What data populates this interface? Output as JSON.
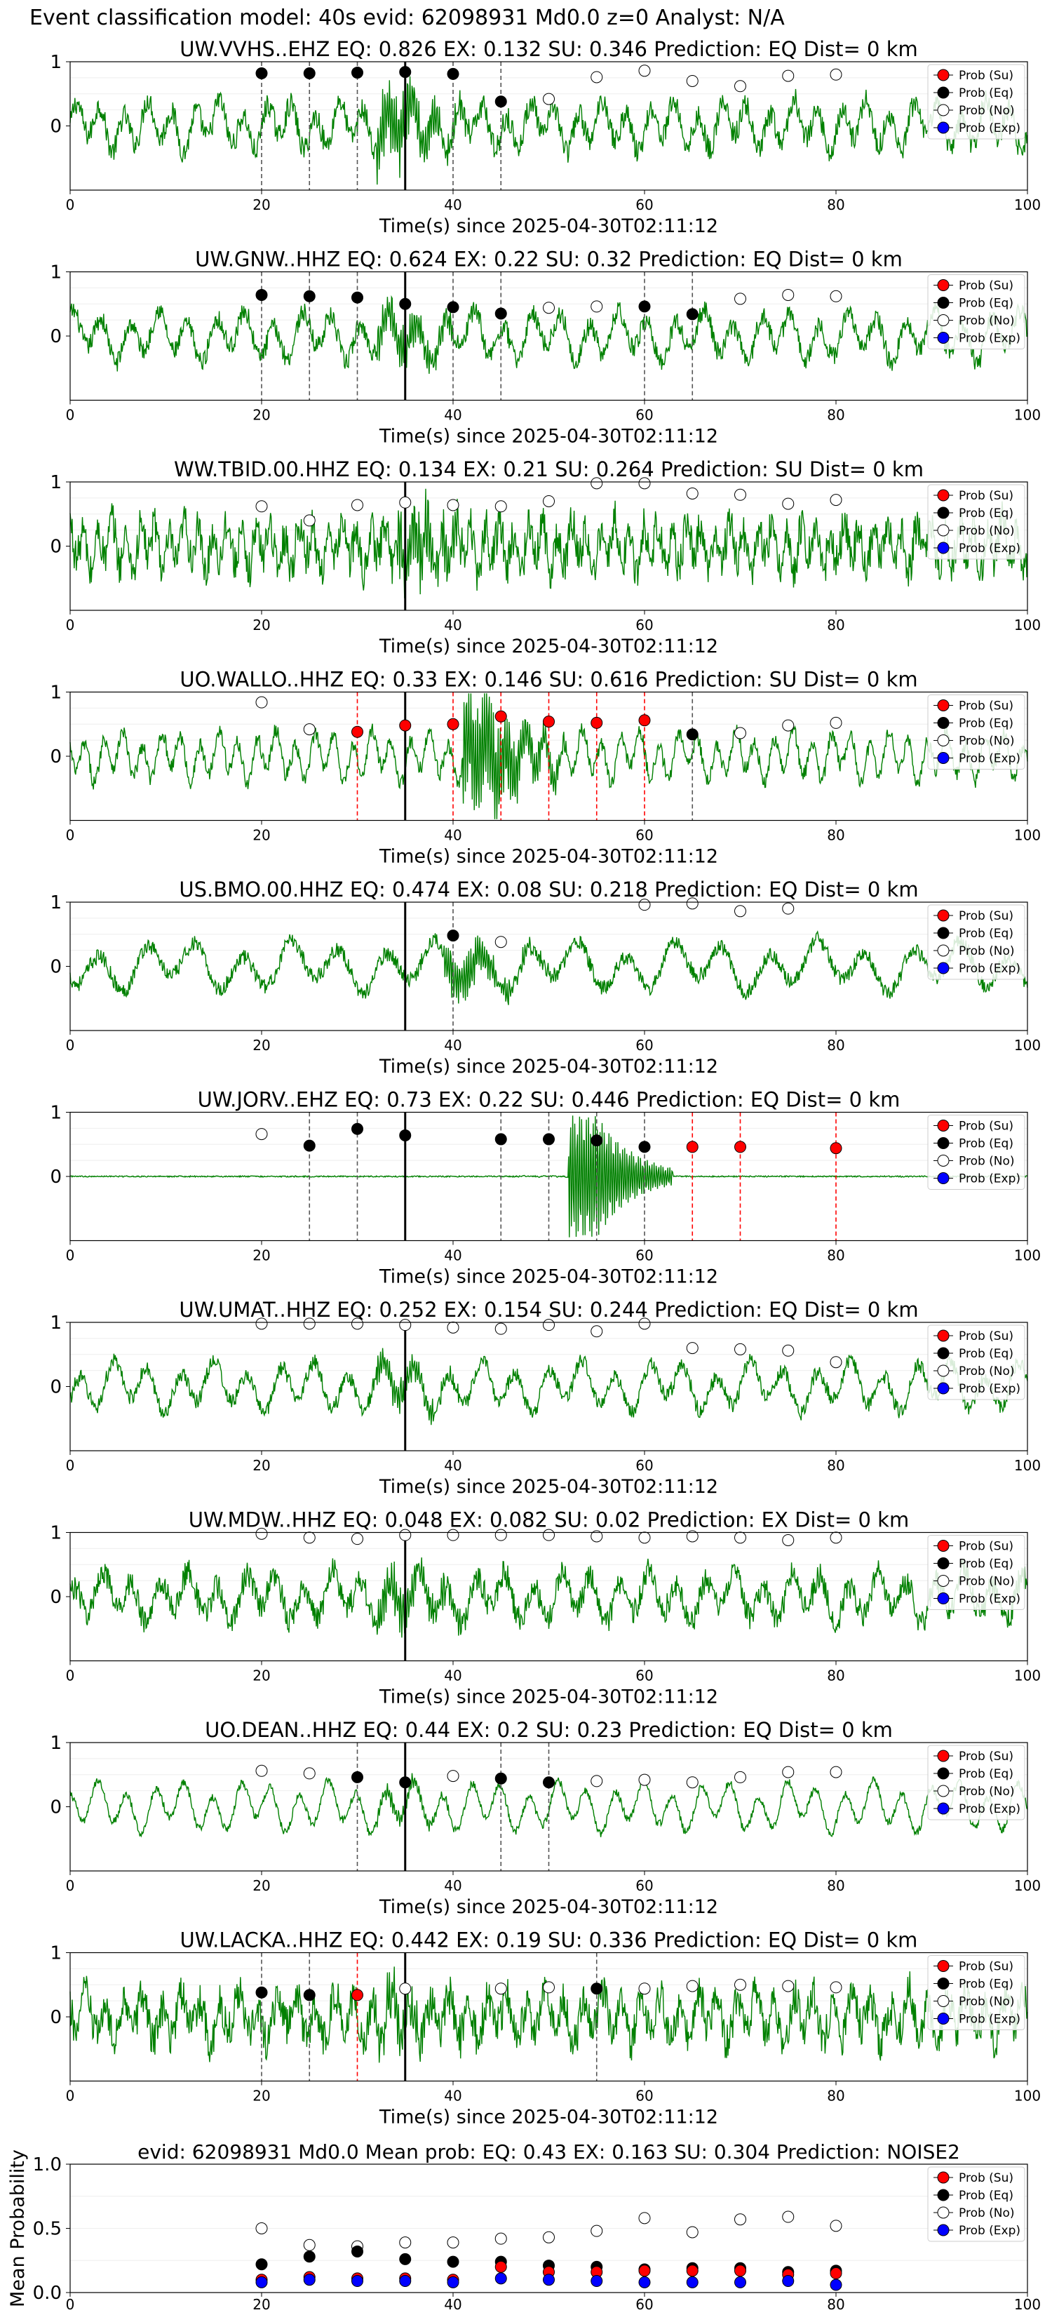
{
  "suptitle": "Event classification model: 40s evid: 62098931 Md0.0 z=0 Analyst: N/A",
  "legend": [
    "Prob (Su)",
    "Prob (Eq)",
    "Prob (No)",
    "Prob (Exp)"
  ],
  "colors": {
    "su": "#ff0000",
    "eq": "#000000",
    "no": "#ffffff",
    "exp": "#0000ff",
    "waveform": "#008000",
    "su_line": "#ff0000",
    "eq_line": "#555555",
    "pick_line": "#000000"
  },
  "xlabel": "Time(s) since 2025-04-30T02:11:12",
  "chart_data": [
    {
      "type": "line",
      "title": "UW.VVHS..EHZ   EQ: 0.826  EX: 0.132  SU: 0.346   Prediction: EQ    Dist= 0 km",
      "xlabel": "Time(s) since 2025-04-30T02:11:12",
      "xlim": [
        0,
        100
      ],
      "ylim": [
        -1,
        1
      ],
      "xticks": [
        0,
        20,
        40,
        60,
        80,
        100
      ],
      "yticks": [
        1,
        0
      ],
      "pick": 35,
      "waveform": {
        "trend": "amp 0.25, burst at 35 s",
        "noise": 0.18,
        "period": 2.5,
        "burst_at": 35,
        "burst_amp": 0.45
      },
      "points": {
        "x": [
          20,
          25,
          30,
          35,
          40,
          45,
          50,
          55,
          60,
          65,
          70,
          75,
          80
        ],
        "cls": [
          "eq",
          "eq",
          "eq",
          "eq",
          "eq",
          "eq",
          "no",
          "no",
          "no",
          "no",
          "no",
          "no",
          "no"
        ],
        "y": [
          0.82,
          0.82,
          0.83,
          0.84,
          0.81,
          0.38,
          0.42,
          0.76,
          0.86,
          0.7,
          0.62,
          0.78,
          0.8
        ]
      },
      "vlines": [
        {
          "x": 20,
          "cls": "eq"
        },
        {
          "x": 25,
          "cls": "eq"
        },
        {
          "x": 30,
          "cls": "eq"
        },
        {
          "x": 40,
          "cls": "eq"
        },
        {
          "x": 45,
          "cls": "eq"
        }
      ]
    },
    {
      "type": "line",
      "title": "UW.GNW..HHZ   EQ: 0.624  EX: 0.22  SU: 0.32   Prediction: EQ    Dist= 0 km",
      "xlabel": "Time(s) since 2025-04-30T02:11:12",
      "xlim": [
        0,
        100
      ],
      "ylim": [
        -1,
        1
      ],
      "xticks": [
        0,
        20,
        40,
        60,
        80,
        100
      ],
      "yticks": [
        1,
        0
      ],
      "pick": 35,
      "waveform": {
        "trend": "amp 0.45 oscillating",
        "noise": 0.15,
        "period": 3.0,
        "burst_at": 35,
        "burst_amp": 0.25
      },
      "points": {
        "x": [
          20,
          25,
          30,
          35,
          40,
          45,
          50,
          55,
          60,
          65,
          70,
          75,
          80
        ],
        "cls": [
          "eq",
          "eq",
          "eq",
          "eq",
          "eq",
          "eq",
          "no",
          "no",
          "eq",
          "eq",
          "no",
          "no",
          "no"
        ],
        "y": [
          0.64,
          0.62,
          0.6,
          0.5,
          0.45,
          0.35,
          0.44,
          0.46,
          0.46,
          0.34,
          0.58,
          0.64,
          0.62
        ]
      },
      "vlines": [
        {
          "x": 20,
          "cls": "eq"
        },
        {
          "x": 25,
          "cls": "eq"
        },
        {
          "x": 30,
          "cls": "eq"
        },
        {
          "x": 40,
          "cls": "eq"
        },
        {
          "x": 45,
          "cls": "eq"
        },
        {
          "x": 60,
          "cls": "eq"
        },
        {
          "x": 65,
          "cls": "eq"
        }
      ]
    },
    {
      "type": "line",
      "title": "WW.TBID.00.HHZ   EQ: 0.134  EX: 0.21  SU: 0.264   Prediction: SU    Dist= 0 km",
      "xlabel": "Time(s) since 2025-04-30T02:11:12",
      "xlim": [
        0,
        100
      ],
      "ylim": [
        -1,
        1
      ],
      "xticks": [
        0,
        20,
        40,
        60,
        80,
        100
      ],
      "yticks": [
        1,
        0
      ],
      "pick": 35,
      "waveform": {
        "trend": "amp 0.4 noisy",
        "noise": 0.3,
        "period": 1.5,
        "burst_at": 37,
        "burst_amp": 0.4
      },
      "points": {
        "x": [
          20,
          25,
          30,
          35,
          40,
          45,
          50,
          55,
          60,
          65,
          70,
          75,
          80
        ],
        "cls": [
          "no",
          "no",
          "no",
          "no",
          "no",
          "no",
          "no",
          "no",
          "no",
          "no",
          "no",
          "no",
          "no"
        ],
        "y": [
          0.62,
          0.4,
          0.64,
          0.68,
          0.64,
          0.62,
          0.7,
          0.98,
          0.98,
          0.82,
          0.8,
          0.66,
          0.72
        ]
      },
      "vlines": []
    },
    {
      "type": "line",
      "title": "UO.WALLO..HHZ   EQ: 0.33  EX: 0.146  SU: 0.616   Prediction: SU    Dist= 0 km",
      "xlabel": "Time(s) since 2025-04-30T02:11:12",
      "xlim": [
        0,
        100
      ],
      "ylim": [
        -1,
        1
      ],
      "xticks": [
        0,
        20,
        40,
        60,
        80,
        100
      ],
      "yticks": [
        1,
        0
      ],
      "pick": 35,
      "waveform": {
        "trend": "amp 0.2, strong burst at 44 s",
        "noise": 0.12,
        "period": 2.0,
        "burst_at": 44,
        "burst_amp": 0.85
      },
      "points": {
        "x": [
          20,
          25,
          30,
          35,
          40,
          45,
          50,
          55,
          60,
          65,
          70,
          75,
          80
        ],
        "cls": [
          "no",
          "no",
          "su",
          "su",
          "su",
          "su",
          "su",
          "su",
          "su",
          "eq",
          "no",
          "no",
          "no"
        ],
        "y": [
          0.84,
          0.42,
          0.38,
          0.48,
          0.5,
          0.62,
          0.54,
          0.52,
          0.56,
          0.34,
          0.36,
          0.48,
          0.52
        ]
      },
      "vlines": [
        {
          "x": 30,
          "cls": "su"
        },
        {
          "x": 40,
          "cls": "su"
        },
        {
          "x": 45,
          "cls": "su"
        },
        {
          "x": 50,
          "cls": "su"
        },
        {
          "x": 55,
          "cls": "su"
        },
        {
          "x": 60,
          "cls": "su"
        },
        {
          "x": 65,
          "cls": "eq"
        }
      ]
    },
    {
      "type": "line",
      "title": "US.BMO.00.HHZ   EQ: 0.474  EX: 0.08  SU: 0.218   Prediction: EQ    Dist= 0 km",
      "xlabel": "Time(s) since 2025-04-30T02:11:12",
      "xlim": [
        0,
        100
      ],
      "ylim": [
        -1,
        1
      ],
      "xticks": [
        0,
        20,
        40,
        60,
        80,
        100
      ],
      "yticks": [
        1,
        0
      ],
      "pick": 35,
      "waveform": {
        "trend": "amp 0.55 long-period",
        "noise": 0.12,
        "period": 5.0,
        "burst_at": 42,
        "burst_amp": 0.3
      },
      "points": {
        "x": [
          40,
          45,
          60,
          65,
          70,
          75
        ],
        "cls": [
          "eq",
          "no",
          "no",
          "no",
          "no",
          "no"
        ],
        "y": [
          0.48,
          0.38,
          0.96,
          0.98,
          0.86,
          0.9
        ]
      },
      "vlines": [
        {
          "x": 40,
          "cls": "eq"
        }
      ]
    },
    {
      "type": "line",
      "title": "UW.JORV..EHZ   EQ: 0.73  EX: 0.22  SU: 0.446   Prediction: EQ    Dist= 0 km",
      "xlabel": "Time(s) since 2025-04-30T02:11:12",
      "xlim": [
        0,
        100
      ],
      "ylim": [
        -1,
        1
      ],
      "xticks": [
        0,
        20,
        40,
        60,
        80,
        100
      ],
      "yticks": [
        1,
        0
      ],
      "pick": 35,
      "waveform": {
        "trend": "flat, event 50-62 s",
        "noise": 0.01,
        "period": 1.0,
        "burst_at": 55,
        "burst_amp": 0.95
      },
      "points": {
        "x": [
          20,
          25,
          30,
          35,
          45,
          50,
          55,
          60,
          65,
          70,
          80
        ],
        "cls": [
          "no",
          "eq",
          "eq",
          "eq",
          "eq",
          "eq",
          "eq",
          "eq",
          "su",
          "su",
          "su"
        ],
        "y": [
          0.66,
          0.48,
          0.74,
          0.64,
          0.58,
          0.58,
          0.56,
          0.46,
          0.46,
          0.46,
          0.44
        ]
      },
      "vlines": [
        {
          "x": 25,
          "cls": "eq"
        },
        {
          "x": 30,
          "cls": "eq"
        },
        {
          "x": 45,
          "cls": "eq"
        },
        {
          "x": 50,
          "cls": "eq"
        },
        {
          "x": 55,
          "cls": "eq"
        },
        {
          "x": 60,
          "cls": "eq"
        },
        {
          "x": 65,
          "cls": "su"
        },
        {
          "x": 70,
          "cls": "su"
        },
        {
          "x": 80,
          "cls": "su"
        }
      ]
    },
    {
      "type": "line",
      "title": "UW.UMAT..HHZ   EQ: 0.252  EX: 0.154  SU: 0.244   Prediction: EQ    Dist= 0 km",
      "xlabel": "Time(s) since 2025-04-30T02:11:12",
      "xlim": [
        0,
        100
      ],
      "ylim": [
        -1,
        1
      ],
      "xticks": [
        0,
        20,
        40,
        60,
        80,
        100
      ],
      "yticks": [
        1,
        0
      ],
      "pick": 35,
      "waveform": {
        "trend": "amp 0.45 oscillating",
        "noise": 0.12,
        "period": 3.5,
        "burst_at": 35,
        "burst_amp": 0.2
      },
      "points": {
        "x": [
          20,
          25,
          30,
          35,
          40,
          45,
          50,
          55,
          60,
          65,
          70,
          75,
          80
        ],
        "cls": [
          "no",
          "no",
          "no",
          "no",
          "no",
          "no",
          "no",
          "no",
          "no",
          "no",
          "no",
          "no",
          "no"
        ],
        "y": [
          0.98,
          0.98,
          0.98,
          0.96,
          0.92,
          0.9,
          0.96,
          0.86,
          0.98,
          0.6,
          0.58,
          0.56,
          0.38
        ]
      },
      "vlines": []
    },
    {
      "type": "line",
      "title": "UW.MDW..HHZ   EQ: 0.048  EX: 0.082  SU: 0.02   Prediction: EX    Dist= 0 km",
      "xlabel": "Time(s) since 2025-04-30T02:11:12",
      "xlim": [
        0,
        100
      ],
      "ylim": [
        -1,
        1
      ],
      "xticks": [
        0,
        20,
        40,
        60,
        80,
        100
      ],
      "yticks": [
        1,
        0
      ],
      "pick": 35,
      "waveform": {
        "trend": "amp 0.55 oscillating",
        "noise": 0.2,
        "period": 3.0,
        "burst_at": 35,
        "burst_amp": 0.3
      },
      "points": {
        "x": [
          20,
          25,
          30,
          35,
          40,
          45,
          50,
          55,
          60,
          65,
          70,
          75,
          80
        ],
        "cls": [
          "no",
          "no",
          "no",
          "no",
          "no",
          "no",
          "no",
          "no",
          "no",
          "no",
          "no",
          "no",
          "no"
        ],
        "y": [
          0.98,
          0.92,
          0.9,
          0.96,
          0.96,
          0.96,
          0.96,
          0.94,
          0.92,
          0.94,
          0.92,
          0.88,
          0.92
        ]
      },
      "vlines": []
    },
    {
      "type": "line",
      "title": "UO.DEAN..HHZ   EQ: 0.44  EX: 0.2  SU: 0.23   Prediction: EQ    Dist= 0 km",
      "xlabel": "Time(s) since 2025-04-30T02:11:12",
      "xlim": [
        0,
        100
      ],
      "ylim": [
        -1,
        1
      ],
      "xticks": [
        0,
        20,
        40,
        60,
        80,
        100
      ],
      "yticks": [
        1,
        0
      ],
      "pick": 35,
      "waveform": {
        "trend": "amp 0.25 oscillating",
        "noise": 0.06,
        "period": 3.0,
        "burst_at": 35,
        "burst_amp": 0.1
      },
      "points": {
        "x": [
          20,
          25,
          30,
          35,
          40,
          45,
          50,
          55,
          60,
          65,
          70,
          75,
          80
        ],
        "cls": [
          "no",
          "no",
          "eq",
          "eq",
          "no",
          "eq",
          "eq",
          "no",
          "no",
          "no",
          "no",
          "no",
          "no"
        ],
        "y": [
          0.56,
          0.52,
          0.46,
          0.38,
          0.48,
          0.44,
          0.38,
          0.4,
          0.42,
          0.38,
          0.46,
          0.54,
          0.54
        ]
      },
      "vlines": [
        {
          "x": 30,
          "cls": "eq"
        },
        {
          "x": 45,
          "cls": "eq"
        },
        {
          "x": 50,
          "cls": "eq"
        }
      ]
    },
    {
      "type": "line",
      "title": "UW.LACKA..HHZ   EQ: 0.442  EX: 0.19  SU: 0.336   Prediction: EQ    Dist= 0 km",
      "xlabel": "Time(s) since 2025-04-30T02:11:12",
      "xlim": [
        0,
        100
      ],
      "ylim": [
        -1,
        1
      ],
      "xticks": [
        0,
        20,
        40,
        60,
        80,
        100
      ],
      "yticks": [
        1,
        0
      ],
      "pick": 35,
      "waveform": {
        "trend": "amp 0.55 noisy",
        "noise": 0.3,
        "period": 2.0,
        "burst_at": 35,
        "burst_amp": 0.3
      },
      "points": {
        "x": [
          20,
          25,
          30,
          35,
          45,
          50,
          55,
          60,
          65,
          70,
          75,
          80
        ],
        "cls": [
          "eq",
          "eq",
          "su",
          "no",
          "no",
          "no",
          "eq",
          "no",
          "no",
          "no",
          "no",
          "no"
        ],
        "y": [
          0.38,
          0.34,
          0.34,
          0.44,
          0.44,
          0.46,
          0.44,
          0.44,
          0.48,
          0.5,
          0.48,
          0.46
        ]
      },
      "vlines": [
        {
          "x": 20,
          "cls": "eq"
        },
        {
          "x": 25,
          "cls": "eq"
        },
        {
          "x": 30,
          "cls": "su"
        },
        {
          "x": 55,
          "cls": "eq"
        }
      ]
    },
    {
      "type": "scatter",
      "title": "evid: 62098931  Md0.0   Mean prob:   EQ: 0.43  EX: 0.163  SU: 0.304   Prediction: NOISE2",
      "xlabel": "",
      "ylabel": "Mean Probability",
      "xlim": [
        0,
        100
      ],
      "ylim": [
        0,
        1
      ],
      "xticks": [
        0,
        20,
        40,
        60,
        80,
        100
      ],
      "yticks": [
        0.0,
        0.5,
        1.0
      ],
      "series": [
        {
          "name": "Prob (No)",
          "cls": "no",
          "x": [
            20,
            25,
            30,
            35,
            40,
            45,
            50,
            55,
            60,
            65,
            70,
            75,
            80
          ],
          "y": [
            0.5,
            0.37,
            0.36,
            0.39,
            0.39,
            0.42,
            0.43,
            0.48,
            0.58,
            0.47,
            0.57,
            0.59,
            0.52
          ]
        },
        {
          "name": "Prob (Eq)",
          "cls": "eq",
          "x": [
            20,
            25,
            30,
            35,
            40,
            45,
            50,
            55,
            60,
            65,
            70,
            75,
            80
          ],
          "y": [
            0.22,
            0.28,
            0.32,
            0.26,
            0.24,
            0.24,
            0.21,
            0.2,
            0.18,
            0.19,
            0.19,
            0.16,
            0.17
          ]
        },
        {
          "name": "Prob (Su)",
          "cls": "su",
          "x": [
            20,
            25,
            30,
            35,
            40,
            45,
            50,
            55,
            60,
            65,
            70,
            75,
            80
          ],
          "y": [
            0.1,
            0.12,
            0.11,
            0.11,
            0.1,
            0.2,
            0.16,
            0.16,
            0.17,
            0.17,
            0.17,
            0.14,
            0.15
          ]
        },
        {
          "name": "Prob (Exp)",
          "cls": "exp",
          "x": [
            20,
            25,
            30,
            35,
            40,
            45,
            50,
            55,
            60,
            65,
            70,
            75,
            80
          ],
          "y": [
            0.08,
            0.1,
            0.09,
            0.09,
            0.08,
            0.11,
            0.1,
            0.09,
            0.08,
            0.08,
            0.08,
            0.09,
            0.06
          ]
        }
      ]
    }
  ]
}
